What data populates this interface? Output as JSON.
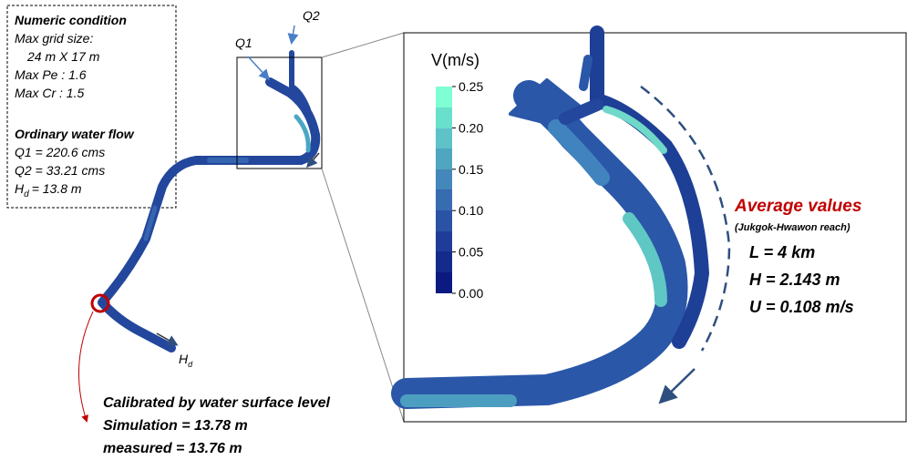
{
  "numeric_condition": {
    "title": "Numeric condition",
    "lines": [
      "Max grid size:",
      "24 m X 17 m",
      "Max Pe : 1.6",
      "Max Cr : 1.5"
    ]
  },
  "water_flow": {
    "title": "Ordinary  water flow",
    "q1": "Q1 = 220.6 cms",
    "q2": "Q2 = 33.21 cms",
    "hd": {
      "symbol": "H",
      "subscript": "d",
      "text": "= 13.8   m"
    }
  },
  "labels": {
    "q1": "Q1",
    "q2": "Q2",
    "hd": {
      "symbol": "H",
      "subscript": "d"
    }
  },
  "calibration": {
    "title": "Calibrated by water surface level",
    "simulation": "Simulation = 13.78 m",
    "measured": "measured = 13.76 m"
  },
  "colorbar": {
    "title": "V(m/s)",
    "ticks": [
      {
        "value": 0.25,
        "label": "0.25"
      },
      {
        "value": 0.2,
        "label": "0.20"
      },
      {
        "value": 0.15,
        "label": "0.15"
      },
      {
        "value": 0.1,
        "label": "0.10"
      },
      {
        "value": 0.05,
        "label": "0.05"
      },
      {
        "value": 0,
        "label": "0.00"
      }
    ]
  },
  "average": {
    "title": "Average values",
    "subtitle": "(Jukgok-Hwawon reach)",
    "lines": [
      "L = 4 km",
      "H = 2.143 m",
      "U = 0.108 m/s"
    ]
  }
}
